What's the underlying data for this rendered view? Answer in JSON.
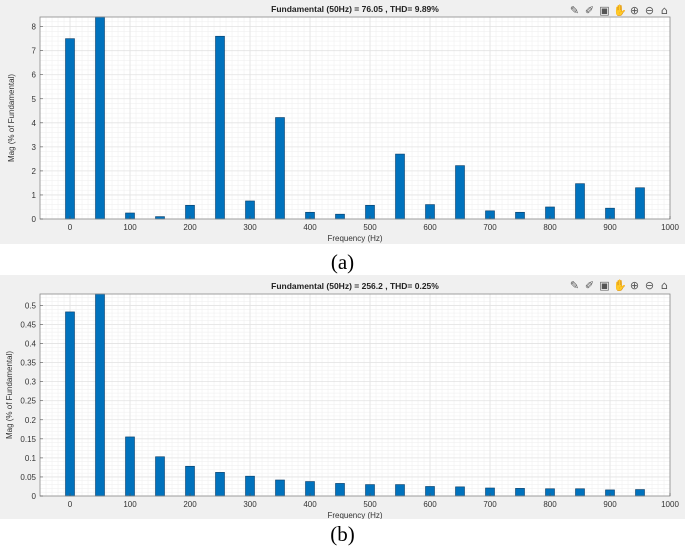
{
  "panels": [
    {
      "caption": "(a)",
      "toolbar_icons": [
        "edit-icon",
        "brush-icon",
        "datatip-icon",
        "pan-icon",
        "zoom-in-icon",
        "zoom-out-icon",
        "home-icon"
      ]
    },
    {
      "caption": "(b)",
      "toolbar_icons": [
        "edit-icon",
        "brush-icon",
        "datatip-icon",
        "pan-icon",
        "zoom-in-icon",
        "zoom-out-icon",
        "home-icon"
      ]
    }
  ],
  "toolbar_glyphs": [
    "✎",
    "✐",
    "▣",
    "✋",
    "⊕",
    "⊖",
    "⌂"
  ],
  "colors": {
    "bar": "#0072bd",
    "bar_edge": "#0b3d66",
    "panel_bg": "#f0f0f0",
    "axes_bg": "#ffffff",
    "grid": "#e3e3e3"
  },
  "chart_data": [
    {
      "type": "bar",
      "title": "Fundamental (50Hz) = 76.05 , THD= 9.89%",
      "xlabel": "Frequency (Hz)",
      "ylabel": "Mag (% of Fundamental)",
      "x": [
        0,
        50,
        100,
        150,
        200,
        250,
        300,
        350,
        400,
        450,
        500,
        550,
        600,
        650,
        700,
        750,
        800,
        850,
        900,
        950
      ],
      "values": [
        7.5,
        8.4,
        0.25,
        0.1,
        0.57,
        7.6,
        0.75,
        4.22,
        0.28,
        0.2,
        0.57,
        2.7,
        0.6,
        2.22,
        0.34,
        0.28,
        0.5,
        1.47,
        0.45,
        1.3
      ],
      "xlim": [
        -50,
        1000
      ],
      "ylim": [
        0,
        8.4
      ],
      "xticks": [
        0,
        100,
        200,
        300,
        400,
        500,
        600,
        700,
        800,
        900,
        1000
      ],
      "yticks": [
        0,
        1,
        2,
        3,
        4,
        5,
        6,
        7,
        8
      ],
      "grid": true
    },
    {
      "type": "bar",
      "title": "Fundamental (50Hz) = 256.2 , THD= 0.25%",
      "xlabel": "Frequency (Hz)",
      "ylabel": "Mag (% of Fundamental)",
      "x": [
        0,
        50,
        100,
        150,
        200,
        250,
        300,
        350,
        400,
        450,
        500,
        550,
        600,
        650,
        700,
        750,
        800,
        850,
        900,
        950
      ],
      "values": [
        0.483,
        0.53,
        0.155,
        0.103,
        0.078,
        0.062,
        0.052,
        0.042,
        0.038,
        0.033,
        0.03,
        0.03,
        0.025,
        0.024,
        0.021,
        0.02,
        0.019,
        0.019,
        0.016,
        0.017
      ],
      "xlim": [
        -50,
        1000
      ],
      "ylim": [
        0,
        0.53
      ],
      "xticks": [
        0,
        100,
        200,
        300,
        400,
        500,
        600,
        700,
        800,
        900,
        1000
      ],
      "yticks": [
        0,
        0.05,
        0.1,
        0.15,
        0.2,
        0.25,
        0.3,
        0.35,
        0.4,
        0.45,
        0.5
      ],
      "grid": true
    }
  ]
}
